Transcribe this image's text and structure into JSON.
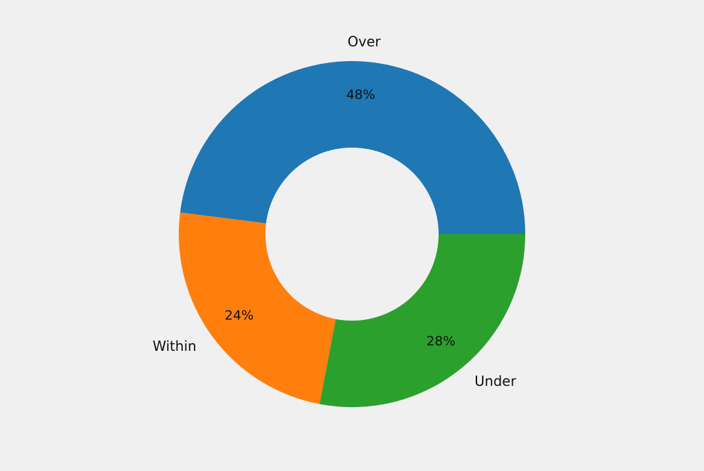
{
  "chart_data": {
    "type": "pie",
    "donut": true,
    "start_direction": "counterclockwise from 3 o'clock",
    "categories": [
      "Over",
      "Within",
      "Under"
    ],
    "values": [
      48,
      24,
      28
    ],
    "unit": "%",
    "percent_labels": [
      "48%",
      "24%",
      "28%"
    ],
    "colors": [
      "#1f77b4",
      "#ff7f0e",
      "#2ca02c"
    ],
    "legend": "none"
  }
}
